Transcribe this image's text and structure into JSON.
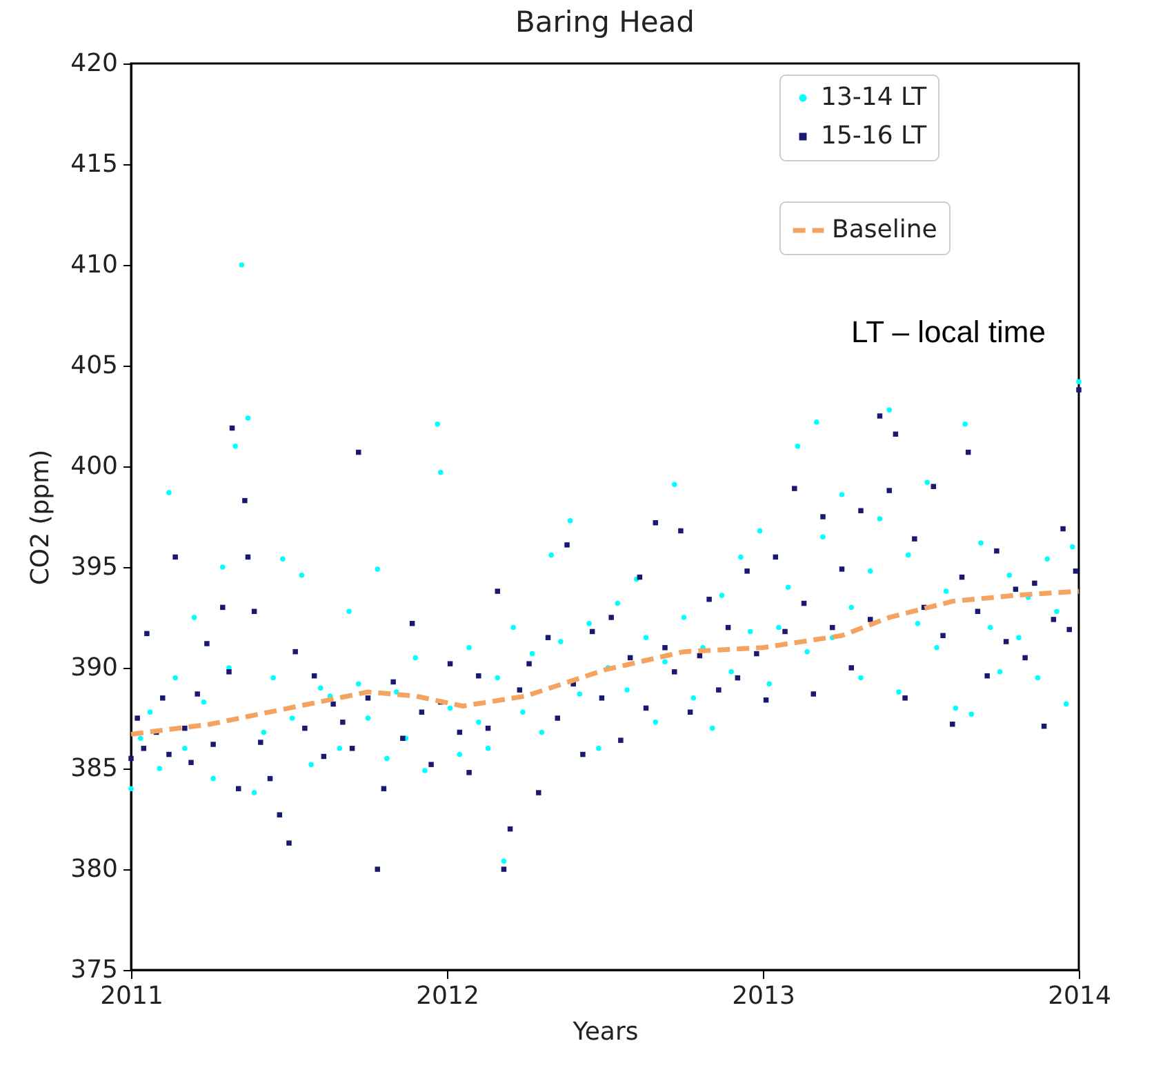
{
  "chart_data": {
    "type": "scatter",
    "title": "Baring Head",
    "xlabel": "Years",
    "ylabel": "CO2 (ppm)",
    "xlim": [
      2011,
      2014
    ],
    "xticks": [
      2011,
      2012,
      2013,
      2014
    ],
    "ylim": [
      375,
      420
    ],
    "yticks": [
      375,
      380,
      385,
      390,
      395,
      400,
      405,
      410,
      415,
      420
    ],
    "grid": false,
    "legend": "top right",
    "annotations": [
      "LT – local time"
    ],
    "series": [
      {
        "name": "13-14 LT",
        "color": "#00ffff",
        "marker": "circle",
        "x": [
          2011.0,
          2011.03,
          2011.06,
          2011.09,
          2011.12,
          2011.14,
          2011.17,
          2011.2,
          2011.23,
          2011.26,
          2011.29,
          2011.31,
          2011.33,
          2011.35,
          2011.37,
          2011.39,
          2011.42,
          2011.45,
          2011.48,
          2011.51,
          2011.54,
          2011.57,
          2011.6,
          2011.63,
          2011.66,
          2011.69,
          2011.72,
          2011.75,
          2011.78,
          2011.81,
          2011.84,
          2011.87,
          2011.9,
          2011.93,
          2011.97,
          2011.98,
          2012.01,
          2012.04,
          2012.07,
          2012.1,
          2012.13,
          2012.16,
          2012.18,
          2012.21,
          2012.24,
          2012.27,
          2012.3,
          2012.33,
          2012.36,
          2012.39,
          2012.42,
          2012.45,
          2012.48,
          2012.51,
          2012.54,
          2012.57,
          2012.6,
          2012.63,
          2012.66,
          2012.69,
          2012.72,
          2012.75,
          2012.78,
          2012.81,
          2012.84,
          2012.87,
          2012.9,
          2012.93,
          2012.96,
          2012.99,
          2013.02,
          2013.05,
          2013.08,
          2013.11,
          2013.14,
          2013.17,
          2013.19,
          2013.22,
          2013.25,
          2013.28,
          2013.31,
          2013.34,
          2013.37,
          2013.4,
          2013.43,
          2013.46,
          2013.49,
          2013.52,
          2013.55,
          2013.58,
          2013.61,
          2013.64,
          2013.66,
          2013.69,
          2013.72,
          2013.75,
          2013.78,
          2013.81,
          2013.84,
          2013.87,
          2013.9,
          2013.93,
          2013.96,
          2013.98,
          2014.0
        ],
        "values": [
          384.0,
          386.5,
          387.8,
          385.0,
          398.7,
          389.5,
          386.0,
          392.5,
          388.3,
          384.5,
          395.0,
          390.0,
          401.0,
          410.0,
          402.4,
          383.8,
          386.8,
          389.5,
          395.4,
          387.5,
          394.6,
          385.2,
          389.0,
          388.6,
          386.0,
          392.8,
          389.2,
          387.5,
          394.9,
          385.5,
          388.8,
          386.5,
          390.5,
          384.9,
          402.1,
          399.7,
          388.0,
          385.7,
          391.0,
          387.3,
          386.0,
          389.5,
          380.4,
          392.0,
          387.8,
          390.7,
          386.8,
          395.6,
          391.3,
          397.3,
          388.7,
          392.2,
          386.0,
          390.0,
          393.2,
          388.9,
          394.4,
          391.5,
          387.3,
          390.3,
          399.1,
          392.5,
          388.5,
          391.0,
          387.0,
          393.6,
          389.8,
          395.5,
          391.8,
          396.8,
          389.2,
          392.0,
          394.0,
          401.0,
          390.8,
          402.2,
          396.5,
          391.5,
          398.6,
          393.0,
          389.5,
          394.8,
          397.4,
          402.8,
          388.8,
          395.6,
          392.2,
          399.2,
          391.0,
          393.8,
          388.0,
          402.1,
          387.7,
          396.2,
          392.0,
          389.8,
          394.6,
          391.5,
          393.5,
          389.5,
          395.4,
          392.8,
          388.2,
          396.0,
          404.2
        ]
      },
      {
        "name": "15-16 LT",
        "color": "#191970",
        "marker": "square",
        "x": [
          2011.0,
          2011.02,
          2011.04,
          2011.05,
          2011.08,
          2011.1,
          2011.12,
          2011.14,
          2011.17,
          2011.19,
          2011.21,
          2011.24,
          2011.26,
          2011.29,
          2011.31,
          2011.32,
          2011.34,
          2011.36,
          2011.37,
          2011.39,
          2011.41,
          2011.44,
          2011.47,
          2011.5,
          2011.52,
          2011.55,
          2011.58,
          2011.61,
          2011.64,
          2011.67,
          2011.7,
          2011.72,
          2011.75,
          2011.78,
          2011.8,
          2011.83,
          2011.86,
          2011.89,
          2011.92,
          2011.95,
          2011.98,
          2012.01,
          2012.04,
          2012.07,
          2012.1,
          2012.13,
          2012.16,
          2012.18,
          2012.2,
          2012.23,
          2012.26,
          2012.29,
          2012.32,
          2012.35,
          2012.38,
          2012.4,
          2012.43,
          2012.46,
          2012.49,
          2012.52,
          2012.55,
          2012.58,
          2012.61,
          2012.63,
          2012.66,
          2012.69,
          2012.72,
          2012.74,
          2012.77,
          2012.8,
          2012.83,
          2012.86,
          2012.89,
          2012.92,
          2012.95,
          2012.98,
          2013.01,
          2013.04,
          2013.07,
          2013.1,
          2013.13,
          2013.16,
          2013.19,
          2013.22,
          2013.25,
          2013.28,
          2013.31,
          2013.34,
          2013.37,
          2013.4,
          2013.42,
          2013.45,
          2013.48,
          2013.51,
          2013.54,
          2013.57,
          2013.6,
          2013.63,
          2013.65,
          2013.68,
          2013.71,
          2013.74,
          2013.77,
          2013.8,
          2013.83,
          2013.86,
          2013.89,
          2013.92,
          2013.95,
          2013.97,
          2013.99,
          2014.0
        ],
        "values": [
          385.5,
          387.5,
          386.0,
          391.7,
          386.8,
          388.5,
          385.7,
          395.5,
          387.0,
          385.3,
          388.7,
          391.2,
          386.2,
          393.0,
          389.8,
          401.9,
          384.0,
          398.3,
          395.5,
          392.8,
          386.3,
          384.5,
          382.7,
          381.3,
          390.8,
          387.0,
          389.6,
          385.6,
          388.2,
          387.3,
          386.0,
          400.7,
          388.5,
          380.0,
          384.0,
          389.3,
          386.5,
          392.2,
          387.8,
          385.2,
          388.3,
          390.2,
          386.8,
          384.8,
          389.6,
          387.0,
          393.8,
          380.0,
          382.0,
          388.9,
          390.2,
          383.8,
          391.5,
          387.5,
          396.1,
          389.2,
          385.7,
          391.8,
          388.5,
          392.5,
          386.4,
          390.5,
          394.5,
          388.0,
          397.2,
          391.0,
          389.8,
          396.8,
          387.8,
          390.6,
          393.4,
          388.9,
          392.0,
          389.5,
          394.8,
          390.7,
          388.4,
          395.5,
          391.8,
          398.9,
          393.2,
          388.7,
          397.5,
          392.0,
          394.9,
          390.0,
          397.8,
          392.4,
          402.5,
          398.8,
          401.6,
          388.5,
          396.4,
          393.0,
          399.0,
          391.6,
          387.2,
          394.5,
          400.7,
          392.8,
          389.6,
          395.8,
          391.3,
          393.9,
          390.5,
          394.2,
          387.1,
          392.4,
          396.9,
          391.9,
          394.8,
          403.8
        ]
      },
      {
        "name": "Baseline",
        "type": "line",
        "color": "#f4a460",
        "line_style": "dashed",
        "x": [
          2011.0,
          2011.25,
          2011.5,
          2011.75,
          2011.9,
          2012.05,
          2012.25,
          2012.5,
          2012.75,
          2013.0,
          2013.25,
          2013.4,
          2013.6,
          2013.8,
          2014.0
        ],
        "values": [
          386.7,
          387.2,
          388.0,
          388.8,
          388.6,
          388.1,
          388.6,
          389.9,
          390.8,
          391.0,
          391.6,
          392.5,
          393.3,
          393.6,
          393.8
        ]
      }
    ]
  }
}
